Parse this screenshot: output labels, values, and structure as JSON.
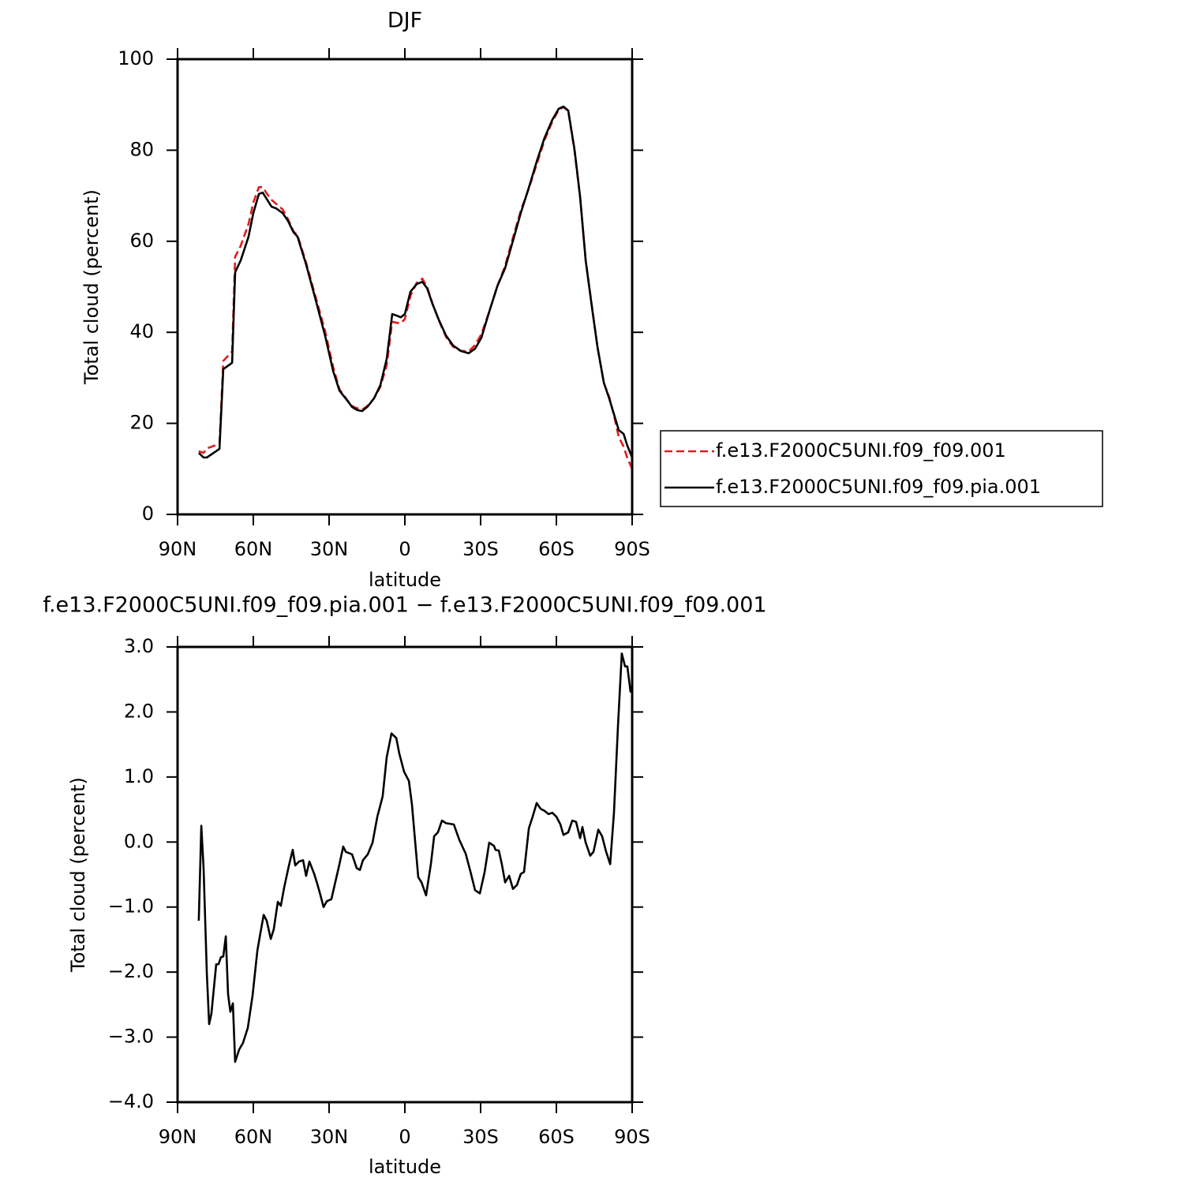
{
  "chart_data": [
    {
      "type": "line",
      "title": "DJF",
      "x_label": "latitude",
      "y_label": "Total cloud (percent)",
      "xlim": [
        90,
        -90
      ],
      "ylim": [
        0,
        100
      ],
      "xticks": [
        {
          "value": 90,
          "label": "90N"
        },
        {
          "value": 60,
          "label": "60N"
        },
        {
          "value": 30,
          "label": "30N"
        },
        0,
        {
          "value": -30,
          "label": "30S"
        },
        {
          "value": -60,
          "label": "60S"
        },
        {
          "value": -90,
          "label": "90S"
        }
      ],
      "yticks": [
        0,
        20,
        40,
        60,
        80,
        100
      ],
      "legend": "right",
      "x": [
        81.6,
        79.7,
        78.4,
        73.4,
        71.9,
        68.4,
        67.2,
        65.0,
        61.9,
        60.0,
        57.8,
        56.3,
        54.7,
        52.8,
        50.9,
        48.4,
        46.3,
        44.1,
        42.5,
        39.1,
        35.3,
        31.6,
        28.4,
        25.9,
        22.8,
        20.9,
        18.8,
        16.9,
        14.7,
        12.2,
        9.7,
        7.2,
        5.0,
        3.4,
        1.6,
        0,
        -2.2,
        -4.7,
        -6.9,
        -8.8,
        -10.9,
        -13.4,
        -16.3,
        -19.1,
        -22.2,
        -25.3,
        -27.8,
        -30.3,
        -33.4,
        -36.6,
        -39.7,
        -42.8,
        -45.9,
        -49.1,
        -52.2,
        -55.3,
        -58.4,
        -60.9,
        -62.8,
        -64.7,
        -67.2,
        -69.4,
        -71.6,
        -74.1,
        -76.3,
        -78.8,
        -80.9,
        -82.8,
        -84.7,
        -86.6,
        -88.1,
        -90.0
      ],
      "series": [
        {
          "name": "f.e13.F2000C5UNI.f09_f09.001",
          "color": "#e31a1c",
          "style": "dashed",
          "values": [
            13.9,
            13.5,
            14.5,
            15.5,
            33.7,
            35.8,
            56.6,
            59.0,
            63.8,
            68.5,
            71.9,
            71.9,
            70.5,
            69.1,
            68.2,
            67.0,
            64.9,
            62.2,
            61.3,
            55.3,
            47.7,
            40.3,
            32.4,
            27.5,
            25.1,
            23.8,
            23.3,
            23.0,
            23.9,
            25.5,
            28.0,
            32.8,
            42.3,
            42.1,
            42.0,
            42.9,
            48.0,
            50.9,
            51.8,
            50.0,
            46.4,
            42.7,
            39.0,
            36.8,
            35.9,
            35.8,
            37.2,
            39.6,
            44.5,
            50.1,
            54.6,
            60.8,
            66.7,
            71.6,
            76.9,
            82.2,
            86.3,
            88.8,
            89.5,
            88.6,
            79.8,
            69.7,
            55.8,
            45.6,
            36.6,
            28.9,
            25.8,
            21.8,
            17.0,
            14.9,
            12.4,
            10.0
          ]
        },
        {
          "name": "f.e13.F2000C5UNI.f09_f09.pia.001",
          "color": "#000000",
          "style": "solid",
          "values": [
            13.5,
            12.5,
            12.5,
            14.4,
            31.9,
            33.3,
            53.2,
            55.8,
            61.0,
            66.2,
            70.4,
            70.7,
            69.3,
            67.6,
            67.2,
            66.2,
            64.5,
            62.0,
            61.0,
            54.9,
            47.1,
            39.3,
            31.5,
            27.2,
            25.0,
            23.6,
            22.9,
            22.7,
            23.7,
            25.5,
            28.4,
            34.1,
            44.0,
            43.7,
            43.3,
            44.0,
            48.9,
            50.6,
            51.1,
            49.7,
            46.3,
            42.8,
            39.3,
            37.1,
            35.9,
            35.4,
            36.4,
            38.8,
            44.5,
            50.1,
            54.1,
            60.1,
            66.2,
            71.8,
            77.5,
            82.7,
            86.7,
            89.1,
            89.6,
            88.7,
            80.1,
            69.7,
            55.8,
            45.4,
            36.7,
            28.9,
            25.5,
            22.0,
            18.5,
            17.7,
            15.1,
            12.5
          ]
        }
      ]
    },
    {
      "type": "line",
      "title": "f.e13.F2000C5UNI.f09_f09.pia.001 − f.e13.F2000C5UNI.f09_f09.001",
      "x_label": "latitude",
      "y_label": "Total cloud (percent)",
      "xlim": [
        90,
        -90
      ],
      "ylim": [
        -4,
        3
      ],
      "xticks": [
        {
          "value": 90,
          "label": "90N"
        },
        {
          "value": 60,
          "label": "60N"
        },
        {
          "value": 30,
          "label": "30N"
        },
        0,
        {
          "value": -30,
          "label": "30S"
        },
        {
          "value": -60,
          "label": "60S"
        },
        {
          "value": -90,
          "label": "90S"
        }
      ],
      "yticks": [
        {
          "value": -4,
          "label": "−4.0"
        },
        {
          "value": -3,
          "label": "−3.0"
        },
        {
          "value": -2,
          "label": "−2.0"
        },
        {
          "value": -1,
          "label": "−1.0"
        },
        {
          "value": 0,
          "label": "0.0"
        },
        {
          "value": 1,
          "label": "1.0"
        },
        {
          "value": 2,
          "label": "2.0"
        },
        {
          "value": 3,
          "label": "3.0"
        }
      ],
      "x": [
        81.6,
        80.6,
        79.7,
        78.4,
        77.5,
        76.6,
        74.7,
        73.8,
        72.8,
        71.9,
        70.9,
        70.0,
        69.1,
        68.1,
        67.2,
        65.6,
        64.1,
        62.2,
        60.3,
        58.4,
        57.2,
        55.9,
        54.7,
        53.1,
        51.9,
        50.3,
        49.1,
        47.8,
        45.9,
        44.4,
        43.4,
        41.9,
        40.3,
        39.1,
        37.8,
        35.9,
        34.7,
        33.4,
        32.2,
        30.9,
        29.1,
        25.9,
        24.4,
        23.4,
        20.9,
        19.1,
        17.8,
        16.6,
        14.7,
        12.8,
        10.9,
        8.8,
        7.2,
        5.3,
        3.4,
        2.2,
        0.3,
        -1.6,
        -2.8,
        -5.3,
        -6.6,
        -8.4,
        -10.3,
        -11.6,
        -13.1,
        -14.7,
        -16.3,
        -19.4,
        -21.6,
        -24.1,
        -26.0,
        -27.8,
        -29.7,
        -31.6,
        -33.4,
        -35.3,
        -35.9,
        -37.2,
        -38.4,
        -39.7,
        -41.3,
        -42.8,
        -44.4,
        -45.9,
        -47.2,
        -49.1,
        -50.6,
        -52.2,
        -53.8,
        -55.3,
        -56.9,
        -58.4,
        -60.0,
        -61.6,
        -62.8,
        -64.7,
        -66.3,
        -67.8,
        -69.4,
        -70.3,
        -71.6,
        -73.4,
        -74.7,
        -76.6,
        -78.1,
        -79.7,
        -81.3,
        -82.8,
        -84.4,
        -85.9,
        -87.2,
        -88.1,
        -89.4
      ],
      "series": [
        {
          "color": "#000000",
          "style": "solid",
          "values": [
            -1.21,
            0.25,
            -0.4,
            -2.03,
            -2.8,
            -2.64,
            -1.88,
            -1.88,
            -1.77,
            -1.76,
            -1.45,
            -2.34,
            -2.61,
            -2.48,
            -3.38,
            -3.19,
            -3.09,
            -2.86,
            -2.36,
            -1.67,
            -1.4,
            -1.12,
            -1.21,
            -1.49,
            -1.34,
            -0.92,
            -0.98,
            -0.7,
            -0.36,
            -0.12,
            -0.36,
            -0.3,
            -0.28,
            -0.52,
            -0.3,
            -0.49,
            -0.64,
            -0.82,
            -1.0,
            -0.91,
            -0.88,
            -0.34,
            -0.07,
            -0.15,
            -0.19,
            -0.4,
            -0.43,
            -0.28,
            -0.19,
            -0.01,
            0.39,
            0.7,
            1.3,
            1.67,
            1.6,
            1.36,
            1.08,
            0.94,
            0.58,
            -0.54,
            -0.62,
            -0.82,
            -0.34,
            0.09,
            0.15,
            0.33,
            0.29,
            0.27,
            0.03,
            -0.18,
            -0.46,
            -0.74,
            -0.79,
            -0.46,
            -0.01,
            -0.06,
            -0.12,
            -0.13,
            -0.34,
            -0.62,
            -0.52,
            -0.72,
            -0.66,
            -0.49,
            -0.46,
            0.21,
            0.39,
            0.6,
            0.51,
            0.48,
            0.43,
            0.45,
            0.39,
            0.27,
            0.11,
            0.15,
            0.33,
            0.31,
            0.06,
            0.23,
            -0.01,
            -0.21,
            -0.15,
            0.19,
            0.09,
            -0.15,
            -0.34,
            0.45,
            1.79,
            2.9,
            2.7,
            2.7,
            2.3
          ]
        }
      ]
    }
  ]
}
